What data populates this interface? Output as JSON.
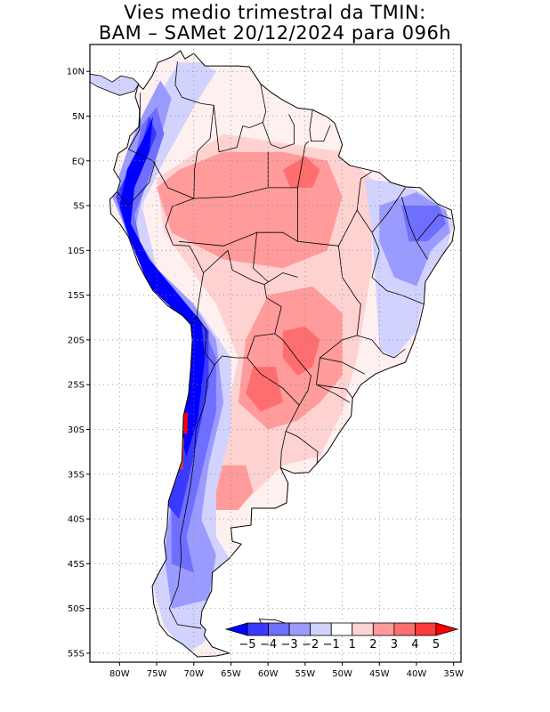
{
  "title": {
    "line1": "Vies medio trimestral da TMIN:",
    "line2": "BAM – SAMet 20/12/2024  para 096h"
  },
  "map": {
    "lon_range": [
      -84,
      -34
    ],
    "lat_range": [
      -56,
      13
    ],
    "grid": "dotted",
    "lat_ticks": [
      {
        "value": 10,
        "label": "10N"
      },
      {
        "value": 5,
        "label": "5N"
      },
      {
        "value": 0,
        "label": "EQ"
      },
      {
        "value": -5,
        "label": "5S"
      },
      {
        "value": -10,
        "label": "10S"
      },
      {
        "value": -15,
        "label": "15S"
      },
      {
        "value": -20,
        "label": "20S"
      },
      {
        "value": -25,
        "label": "25S"
      },
      {
        "value": -30,
        "label": "30S"
      },
      {
        "value": -35,
        "label": "35S"
      },
      {
        "value": -40,
        "label": "40S"
      },
      {
        "value": -45,
        "label": "45S"
      },
      {
        "value": -50,
        "label": "50S"
      },
      {
        "value": -55,
        "label": "55S"
      }
    ],
    "lon_ticks": [
      {
        "value": -80,
        "label": "80W"
      },
      {
        "value": -75,
        "label": "75W"
      },
      {
        "value": -70,
        "label": "70W"
      },
      {
        "value": -65,
        "label": "65W"
      },
      {
        "value": -60,
        "label": "60W"
      },
      {
        "value": -55,
        "label": "55W"
      },
      {
        "value": -50,
        "label": "50W"
      },
      {
        "value": -45,
        "label": "45W"
      },
      {
        "value": -40,
        "label": "40W"
      },
      {
        "value": -35,
        "label": "35W"
      }
    ]
  },
  "colorbar": {
    "labels": [
      "−5",
      "−4",
      "−3",
      "−2",
      "−1",
      "1",
      "2",
      "3",
      "4",
      "5"
    ],
    "colors": {
      "lt_minus5": "#0000ff",
      "m5_m4": "#3a3aff",
      "m4_m3": "#6e6eff",
      "m3_m2": "#9b9bff",
      "m2_m1": "#d2d2ff",
      "m1_1": "#ffffff",
      "p1_p2": "#ffd2d2",
      "p2_p3": "#ff9b9b",
      "p3_p4": "#ff6e6e",
      "p4_p5": "#ff3a3a",
      "gt_5": "#ff0000"
    }
  }
}
